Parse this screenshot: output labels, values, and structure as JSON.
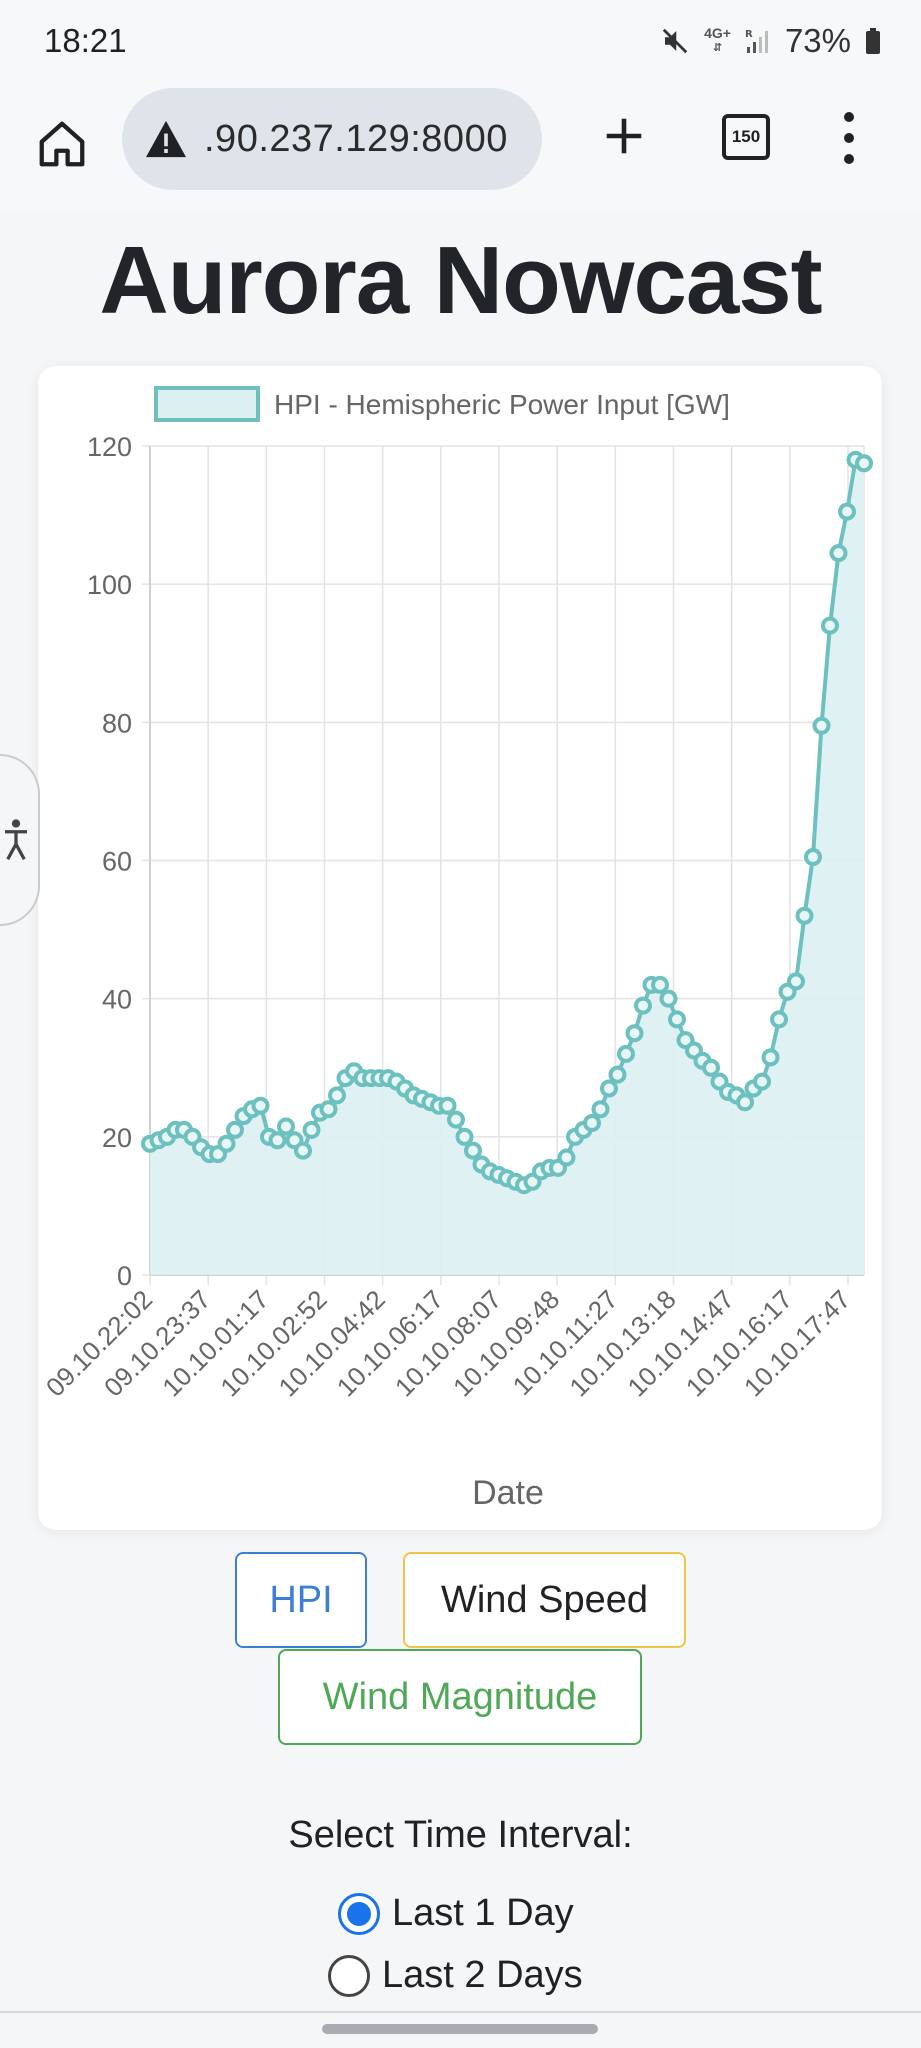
{
  "status_bar": {
    "time": "18:21",
    "network": "4G+",
    "network_sub": "R",
    "battery": "73%"
  },
  "browser": {
    "url": ".90.237.129:8000",
    "tab_count": "150"
  },
  "page": {
    "title": "Aurora Nowcast",
    "buttons": {
      "hpi": "HPI",
      "wind_speed": "Wind Speed",
      "wind_magnitude": "Wind Magnitude"
    },
    "interval": {
      "label": "Select Time Interval:",
      "options": [
        "Last 1 Day",
        "Last 2 Days"
      ],
      "selected": "Last 1 Day"
    }
  },
  "colors": {
    "series_line": "#6cc0bf",
    "series_fill": "#dcf0f2",
    "hpi_button": "#3e7fd6",
    "wind_speed_button": "#f0c349",
    "wind_magnitude_button": "#4ea855",
    "radio_selected": "#1a73e8"
  },
  "icons": {
    "home": "home-icon",
    "security": "warning-icon",
    "new_tab": "plus-icon",
    "tabs": "tab-switcher-icon",
    "menu": "more-vert-icon",
    "accessibility": "accessibility-icon"
  },
  "chart_data": {
    "type": "area",
    "xlabel": "Date",
    "ylabel": "",
    "ylim": [
      0,
      120
    ],
    "yticks": [
      0,
      20,
      40,
      60,
      80,
      100,
      120
    ],
    "xticks": [
      "09.10.22:02",
      "09.10.23:37",
      "10.10.01:17",
      "10.10.02:52",
      "10.10.04:42",
      "10.10.06:17",
      "10.10.08:07",
      "10.10.09:48",
      "10.10.11:27",
      "10.10.13:18",
      "10.10.14:47",
      "10.10.16:17",
      "10.10.17:47"
    ],
    "legend_position": "top",
    "grid": true,
    "series": [
      {
        "name": "HPI - Hemispheric Power Input [GW]",
        "values": [
          19,
          19.5,
          20,
          21,
          21,
          20,
          18.5,
          17.5,
          17.5,
          19,
          21,
          23,
          24,
          24.5,
          20,
          19.5,
          21.5,
          19.5,
          18,
          21,
          23.5,
          24,
          26,
          28.5,
          29.5,
          28.5,
          28.5,
          28.5,
          28.5,
          28,
          27,
          26,
          25.5,
          25,
          24.5,
          24.5,
          22.5,
          20,
          18,
          16,
          15,
          14.5,
          14,
          13.5,
          13,
          13.5,
          15,
          15.5,
          15.5,
          17,
          20,
          21,
          22,
          24,
          27,
          29,
          32,
          35,
          39,
          42,
          42,
          40,
          37,
          34,
          32.5,
          31,
          30,
          28,
          26.5,
          26,
          25,
          27,
          28,
          31.5,
          37,
          41,
          42.5,
          52,
          60.5,
          79.5,
          94,
          104.5,
          110.5,
          118,
          117.5
        ]
      }
    ]
  }
}
